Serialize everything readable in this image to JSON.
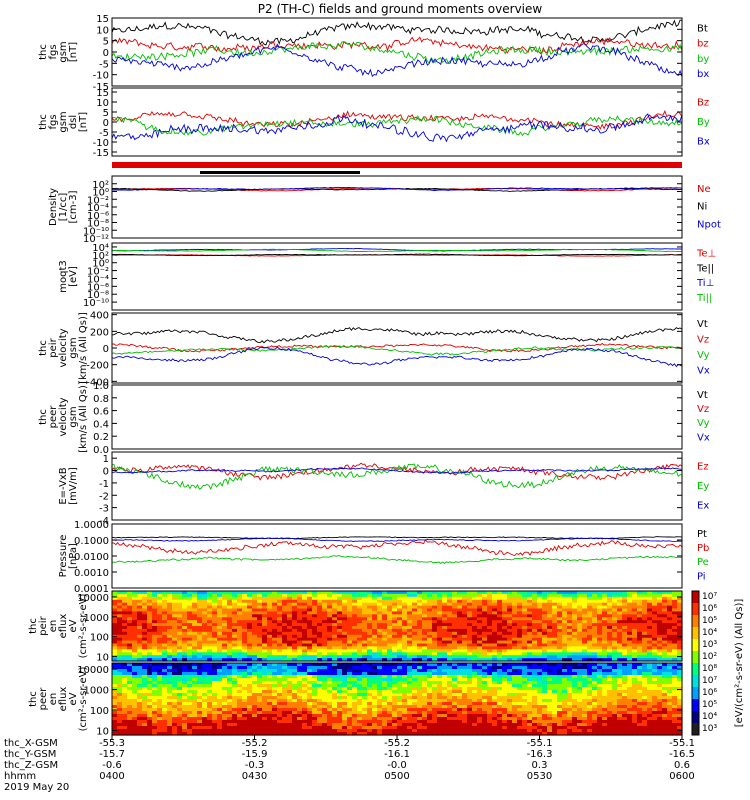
{
  "title": "P2 (TH-C) fields and ground moments overview",
  "chart_data": [
    {
      "type": "line",
      "ylabel": [
        "thc",
        "fgs",
        "gsm",
        "[nT]"
      ],
      "ylim": [
        -15,
        15
      ],
      "yticks": [
        "15",
        "10",
        "5",
        "0",
        "-5",
        "-10",
        "-15"
      ],
      "yticks_values": [
        15,
        10,
        5,
        0,
        -5,
        -10,
        -15
      ],
      "series": [
        {
          "name": "Bt",
          "color": "#000000",
          "base": 9,
          "amp": 4,
          "noise": 3
        },
        {
          "name": "bz",
          "color": "#e00000",
          "base": 3,
          "amp": 2,
          "noise": 3
        },
        {
          "name": "by",
          "color": "#00c000",
          "base": 0,
          "amp": 3,
          "noise": 3
        },
        {
          "name": "bx",
          "color": "#0000e0",
          "base": -4,
          "amp": 6,
          "noise": 3
        }
      ]
    },
    {
      "type": "line",
      "ylabel": [
        "thc",
        "fgs",
        "gsm",
        "dsl",
        "[nT]"
      ],
      "ylim": [
        -17,
        17
      ],
      "yticks": [
        "15",
        "10",
        "5",
        "0",
        "-5",
        "-10",
        "-15"
      ],
      "yticks_values": [
        15,
        10,
        5,
        0,
        -5,
        -10,
        -15
      ],
      "series": [
        {
          "name": "Bz",
          "color": "#e00000",
          "base": 1,
          "amp": 3,
          "noise": 3
        },
        {
          "name": "By",
          "color": "#00c000",
          "base": -1,
          "amp": 4,
          "noise": 3
        },
        {
          "name": "Bx",
          "color": "#0000e0",
          "base": -3,
          "amp": 6,
          "noise": 4
        }
      ]
    },
    {
      "type": "line",
      "ylabel": [
        "Density",
        "[1/cc]",
        "[cm-3]"
      ],
      "ylim": [
        -12,
        4
      ],
      "log": true,
      "yticks": [
        "10²",
        "10⁰",
        "10⁻²",
        "10⁻⁴",
        "10⁻⁶",
        "10⁻⁸",
        "10⁻¹⁰",
        "10⁻¹²"
      ],
      "yticks_values": [
        2,
        0,
        -2,
        -4,
        -6,
        -8,
        -10,
        -12
      ],
      "series": [
        {
          "name": "Ne",
          "color": "#e00000",
          "base": 0.6,
          "amp": 0.4,
          "noise": 0.15
        },
        {
          "name": "Ni",
          "color": "#000000",
          "base": 0.5,
          "amp": 0.4,
          "noise": 0.15
        },
        {
          "name": "Npot",
          "color": "#0000e0",
          "base": 0.7,
          "amp": 0.4,
          "noise": 0.15
        }
      ]
    },
    {
      "type": "line",
      "ylabel": [
        "moqt3",
        "[eV]"
      ],
      "ylim": [
        -12,
        5
      ],
      "log": true,
      "yticks": [
        "10⁴",
        "10²",
        "10⁰",
        "10⁻²",
        "10⁻⁴",
        "10⁻⁶",
        "10⁻⁸",
        "10⁻¹⁰"
      ],
      "yticks_values": [
        4,
        2,
        0,
        -2,
        -4,
        -6,
        -8,
        -10
      ],
      "series": [
        {
          "name": "Te⊥",
          "color": "#e00000",
          "base": 1.9,
          "amp": 0.2,
          "noise": 0.1
        },
        {
          "name": "Te||",
          "color": "#000000",
          "base": 2.0,
          "amp": 0.2,
          "noise": 0.1
        },
        {
          "name": "Ti⊥",
          "color": "#0000e0",
          "base": 3.3,
          "amp": 0.3,
          "noise": 0.1
        },
        {
          "name": "Ti||",
          "color": "#00c000",
          "base": 3.1,
          "amp": 0.3,
          "noise": 0.1
        }
      ]
    },
    {
      "type": "line",
      "ylabel": [
        "thc",
        "peir",
        "velocity",
        "gsm",
        "[km/s (All Qs)]"
      ],
      "ylim": [
        -420,
        420
      ],
      "yticks": [
        "400",
        "200",
        "0",
        "-200",
        "-400"
      ],
      "yticks_values": [
        400,
        200,
        0,
        -200,
        -400
      ],
      "series": [
        {
          "name": "Vt",
          "color": "#000000",
          "base": 170,
          "amp": 90,
          "noise": 35
        },
        {
          "name": "Vz",
          "color": "#e00000",
          "base": 10,
          "amp": 40,
          "noise": 25
        },
        {
          "name": "Vy",
          "color": "#00c000",
          "base": -20,
          "amp": 50,
          "noise": 25
        },
        {
          "name": "Vx",
          "color": "#0000e0",
          "base": -110,
          "amp": 110,
          "noise": 30
        }
      ]
    },
    {
      "type": "line",
      "ylabel": [
        "thc",
        "peer",
        "velocity",
        "gsm",
        "[km/s (All Qs)]"
      ],
      "ylim": [
        0,
        1
      ],
      "yticks": [
        "1.0",
        "0.8",
        "0.6",
        "0.4",
        "0.2",
        "0.0"
      ],
      "yticks_values": [
        1,
        0.8,
        0.6,
        0.4,
        0.2,
        0
      ],
      "series": [
        {
          "name": "Vt",
          "color": "#000000",
          "empty": true
        },
        {
          "name": "Vz",
          "color": "#e00000",
          "empty": true
        },
        {
          "name": "Vy",
          "color": "#00c000",
          "empty": true
        },
        {
          "name": "Vx",
          "color": "#0000e0",
          "empty": true
        }
      ]
    },
    {
      "type": "line",
      "ylabel": [
        "E=-VxB",
        "[mV/m]"
      ],
      "ylim": [
        -4,
        1.5
      ],
      "yticks": [
        "1",
        "0",
        "-1",
        "-2",
        "-3",
        "-4"
      ],
      "yticks_values": [
        1,
        0,
        -1,
        -2,
        -3,
        -4
      ],
      "series": [
        {
          "name": "Ez",
          "color": "#e00000",
          "base": 0,
          "amp": 0.5,
          "noise": 0.4
        },
        {
          "name": "Ey",
          "color": "#00c000",
          "base": -0.3,
          "amp": 0.9,
          "noise": 0.5
        },
        {
          "name": "Ex",
          "color": "#0000e0",
          "base": 0,
          "amp": 0.2,
          "noise": 0.1
        }
      ]
    },
    {
      "type": "line",
      "ylabel": [
        "Pressure",
        "[nPa]"
      ],
      "ylim": [
        -4,
        0
      ],
      "log": true,
      "yticks": [
        "1.0000",
        "0.1000",
        "0.0100",
        "0.0010",
        "0.0001"
      ],
      "yticks_values": [
        0,
        -1,
        -2,
        -3,
        -4
      ],
      "series": [
        {
          "name": "Pt",
          "color": "#000000",
          "base": -0.85,
          "amp": 0.05,
          "noise": 0.04
        },
        {
          "name": "Pb",
          "color": "#e00000",
          "base": -1.4,
          "amp": 0.4,
          "noise": 0.25
        },
        {
          "name": "Pe",
          "color": "#00c000",
          "base": -2.2,
          "amp": 0.2,
          "noise": 0.1
        },
        {
          "name": "Pi",
          "color": "#0000e0",
          "base": -1.0,
          "amp": 0.1,
          "noise": 0.05
        }
      ]
    },
    {
      "type": "heatmap",
      "ylabel": [
        "thc",
        "peir",
        "en",
        "eflux",
        "eV",
        "(cm²-s-sr-eV)"
      ],
      "log": true,
      "ylim": [
        0.78,
        4.3
      ],
      "yticks": [
        "10000",
        "1000",
        "100",
        "10"
      ],
      "yticks_values": [
        4,
        3,
        2,
        1
      ]
    },
    {
      "type": "heatmap",
      "ylabel": [
        "thc",
        "peer",
        "en",
        "eflux",
        "eV",
        "(cm²-s-sr-eV)"
      ],
      "log": true,
      "ylim": [
        0.78,
        4.3
      ],
      "yticks": [
        "10000",
        "1000",
        "100",
        "10"
      ],
      "yticks_values": [
        4,
        3,
        2,
        1
      ]
    }
  ],
  "colorbar": {
    "label": "[eV/(cm²-s-sr-eV) (All Qs)]",
    "ticks": [
      "10⁷",
      "10⁶",
      "10⁵",
      "10⁴",
      "10³",
      "10²",
      "10⁸",
      "10⁷",
      "10⁶",
      "10⁵",
      "10⁴",
      "10³"
    ]
  },
  "xaxis": {
    "rows": [
      {
        "label": "thc_X-GSM",
        "values": [
          "-55.3",
          "-55.2",
          "-55.2",
          "-55.1",
          "-55.1"
        ]
      },
      {
        "label": "thc_Y-GSM",
        "values": [
          "-15.7",
          "-15.9",
          "-16.1",
          "-16.3",
          "-16.5"
        ]
      },
      {
        "label": "thc_Z-GSM",
        "values": [
          "-0.6",
          "-0.3",
          "-0.0",
          "0.3",
          "0.6"
        ]
      },
      {
        "label": "hhmm",
        "values": [
          "0400",
          "0430",
          "0500",
          "0530",
          "0600"
        ]
      }
    ],
    "date": "2019 May 20"
  }
}
